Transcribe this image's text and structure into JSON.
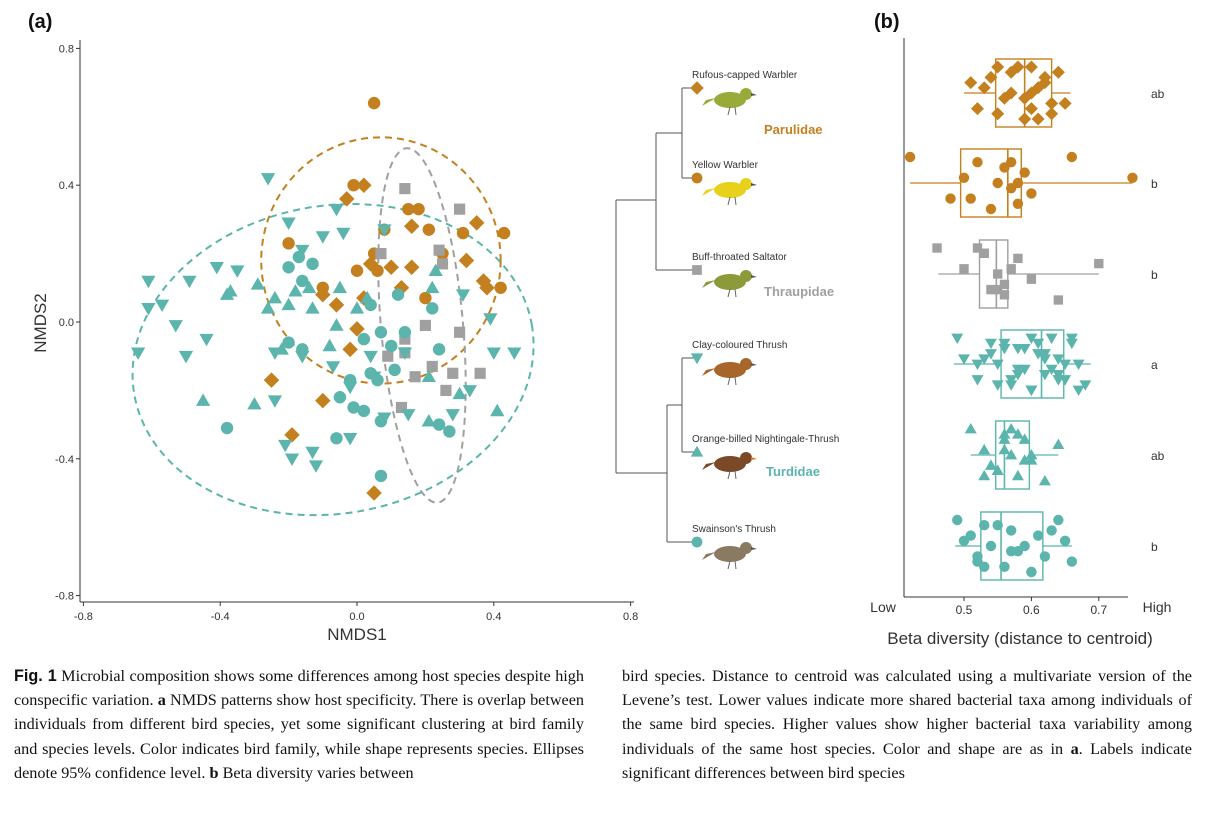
{
  "colors": {
    "parulidae": "#C4801E",
    "thraupidae": "#A0A0A0",
    "turdidae": "#5BB5AC",
    "axis": "#333333"
  },
  "panel_a": {
    "label": "(a)",
    "xlabel": "NMDS1",
    "ylabel": "NMDS2",
    "xticks": [
      "-0.8",
      "-0.4",
      "0.0",
      "0.4",
      "0.8"
    ],
    "yticks": [
      "0.8",
      "0.4",
      "0.0",
      "-0.4",
      "-0.8"
    ]
  },
  "tree": {
    "species": [
      {
        "name": "Rufous-capped Warbler",
        "shape": "diamond",
        "family": "parulidae",
        "bird_icon": "rufous-capped-warbler-icon"
      },
      {
        "name": "Yellow Warbler",
        "shape": "circle",
        "family": "parulidae",
        "bird_icon": "yellow-warbler-icon"
      },
      {
        "name": "Buff-throated Saltator",
        "shape": "square",
        "family": "thraupidae",
        "bird_icon": "buff-throated-saltator-icon"
      },
      {
        "name": "Clay-coloured Thrush",
        "shape": "triangle-down",
        "family": "turdidae",
        "bird_icon": "clay-coloured-thrush-icon"
      },
      {
        "name": "Orange-billed Nightingale-Thrush",
        "shape": "triangle-up",
        "family": "turdidae",
        "bird_icon": "orange-billed-nightingale-thrush-icon"
      },
      {
        "name": "Swainson's Thrush",
        "shape": "circle",
        "family": "turdidae",
        "bird_icon": "swainsons-thrush-icon"
      }
    ],
    "families": [
      "Parulidae",
      "Thraupidae",
      "Turdidae"
    ]
  },
  "panel_b": {
    "label": "(b)",
    "xlabel": "Beta diversity (distance to centroid)",
    "low": "Low",
    "high": "High",
    "xticks": [
      "0.5",
      "0.6",
      "0.7"
    ],
    "significance": [
      "ab",
      "b",
      "b",
      "a",
      "ab",
      "b"
    ]
  },
  "chart_data": [
    {
      "type": "scatter",
      "title": "",
      "xlabel": "NMDS1",
      "ylabel": "NMDS2",
      "xlim": [
        -0.8,
        0.8
      ],
      "ylim": [
        -0.8,
        0.8
      ],
      "grid": false,
      "ellipses": [
        {
          "family": "Parulidae",
          "center": [
            0.07,
            0.18
          ],
          "semi_axes": [
            0.35,
            0.36
          ],
          "style": "dashed"
        },
        {
          "family": "Thraupidae",
          "center": [
            0.19,
            -0.01
          ],
          "semi_axes": [
            0.12,
            0.52
          ],
          "rotation_deg": -5,
          "style": "dashed"
        },
        {
          "family": "Turdidae",
          "center": [
            -0.07,
            -0.11
          ],
          "semi_axes": [
            0.59,
            0.45
          ],
          "rotation_deg": -10,
          "style": "dashed"
        }
      ],
      "series": [
        {
          "name": "Rufous-capped Warbler",
          "shape": "diamond",
          "color": "#C4801E",
          "points": [
            [
              0.02,
              0.4
            ],
            [
              -0.03,
              0.36
            ],
            [
              0.04,
              0.17
            ],
            [
              0.16,
              0.16
            ],
            [
              0.32,
              0.18
            ],
            [
              0.37,
              0.12
            ],
            [
              0.38,
              0.1
            ],
            [
              -0.1,
              0.08
            ],
            [
              -0.06,
              0.05
            ],
            [
              0.02,
              0.07
            ],
            [
              -0.02,
              -0.08
            ],
            [
              -0.25,
              -0.17
            ],
            [
              -0.1,
              -0.23
            ],
            [
              -0.19,
              -0.33
            ],
            [
              0.05,
              -0.5
            ],
            [
              0.16,
              0.28
            ],
            [
              0.35,
              0.29
            ],
            [
              0.1,
              0.16
            ],
            [
              -0.0,
              -0.02
            ],
            [
              0.13,
              0.1
            ]
          ]
        },
        {
          "name": "Yellow Warbler",
          "shape": "circle",
          "color": "#C4801E",
          "points": [
            [
              0.05,
              0.64
            ],
            [
              -0.01,
              0.4
            ],
            [
              0.15,
              0.33
            ],
            [
              0.18,
              0.33
            ],
            [
              0.08,
              0.27
            ],
            [
              0.21,
              0.27
            ],
            [
              0.31,
              0.26
            ],
            [
              0.43,
              0.26
            ],
            [
              -0.2,
              0.23
            ],
            [
              0.25,
              0.2
            ],
            [
              0.05,
              0.2
            ],
            [
              -0.0,
              0.15
            ],
            [
              0.06,
              0.15
            ],
            [
              -0.1,
              0.1
            ],
            [
              0.2,
              0.07
            ],
            [
              0.42,
              0.1
            ]
          ]
        },
        {
          "name": "Buff-throated Saltator",
          "shape": "square",
          "color": "#A0A0A0",
          "points": [
            [
              0.14,
              0.39
            ],
            [
              0.3,
              0.33
            ],
            [
              0.24,
              0.21
            ],
            [
              0.25,
              0.17
            ],
            [
              0.07,
              0.2
            ],
            [
              0.2,
              -0.01
            ],
            [
              0.3,
              -0.03
            ],
            [
              0.14,
              -0.05
            ],
            [
              0.09,
              -0.1
            ],
            [
              0.14,
              -0.09
            ],
            [
              0.22,
              -0.13
            ],
            [
              0.28,
              -0.15
            ],
            [
              0.36,
              -0.15
            ],
            [
              0.17,
              -0.16
            ],
            [
              0.13,
              -0.25
            ],
            [
              0.26,
              -0.2
            ]
          ]
        },
        {
          "name": "Clay-coloured Thrush",
          "shape": "triangle-down",
          "color": "#5BB5AC",
          "points": [
            [
              -0.26,
              0.42
            ],
            [
              -0.06,
              0.33
            ],
            [
              -0.2,
              0.29
            ],
            [
              -0.1,
              0.25
            ],
            [
              -0.16,
              0.21
            ],
            [
              -0.04,
              0.26
            ],
            [
              0.08,
              0.27
            ],
            [
              -0.41,
              0.16
            ],
            [
              -0.35,
              0.15
            ],
            [
              -0.61,
              0.12
            ],
            [
              -0.49,
              0.12
            ],
            [
              -0.57,
              0.05
            ],
            [
              -0.61,
              0.04
            ],
            [
              -0.53,
              -0.01
            ],
            [
              -0.44,
              -0.05
            ],
            [
              -0.64,
              -0.09
            ],
            [
              -0.5,
              -0.1
            ],
            [
              -0.24,
              -0.09
            ],
            [
              -0.16,
              -0.1
            ],
            [
              0.04,
              -0.1
            ],
            [
              -0.07,
              -0.13
            ],
            [
              -0.02,
              -0.19
            ],
            [
              0.05,
              -0.16
            ],
            [
              -0.24,
              -0.23
            ],
            [
              0.08,
              -0.28
            ],
            [
              -0.21,
              -0.36
            ],
            [
              -0.02,
              -0.34
            ],
            [
              -0.13,
              -0.38
            ],
            [
              -0.19,
              -0.4
            ],
            [
              -0.12,
              -0.42
            ],
            [
              0.15,
              -0.27
            ],
            [
              0.33,
              -0.2
            ],
            [
              0.4,
              -0.09
            ],
            [
              0.31,
              0.08
            ],
            [
              0.39,
              0.01
            ],
            [
              0.46,
              -0.09
            ],
            [
              0.14,
              -0.09
            ],
            [
              0.28,
              -0.27
            ]
          ]
        },
        {
          "name": "Orange-billed Nightingale-Thrush",
          "shape": "triangle-up",
          "color": "#5BB5AC",
          "points": [
            [
              -0.37,
              0.09
            ],
            [
              -0.29,
              0.11
            ],
            [
              -0.14,
              0.1
            ],
            [
              -0.05,
              0.1
            ],
            [
              -0.24,
              0.07
            ],
            [
              -0.18,
              0.09
            ],
            [
              -0.38,
              0.08
            ],
            [
              -0.26,
              0.04
            ],
            [
              -0.2,
              0.05
            ],
            [
              -0.13,
              0.04
            ],
            [
              0.03,
              0.07
            ],
            [
              0.23,
              0.15
            ],
            [
              0.22,
              0.1
            ],
            [
              0.0,
              0.04
            ],
            [
              -0.06,
              -0.01
            ],
            [
              -0.08,
              -0.07
            ],
            [
              -0.22,
              -0.08
            ],
            [
              -0.3,
              -0.24
            ],
            [
              -0.45,
              -0.23
            ],
            [
              0.21,
              -0.16
            ],
            [
              0.3,
              -0.21
            ],
            [
              0.21,
              -0.29
            ],
            [
              0.41,
              -0.26
            ]
          ]
        },
        {
          "name": "Swainson's Thrush",
          "shape": "circle",
          "color": "#5BB5AC",
          "points": [
            [
              -0.17,
              0.19
            ],
            [
              -0.2,
              0.16
            ],
            [
              -0.13,
              0.17
            ],
            [
              -0.16,
              0.12
            ],
            [
              0.12,
              0.08
            ],
            [
              0.04,
              0.05
            ],
            [
              0.22,
              0.04
            ],
            [
              0.07,
              -0.03
            ],
            [
              -0.2,
              -0.06
            ],
            [
              -0.16,
              -0.08
            ],
            [
              0.02,
              -0.05
            ],
            [
              0.1,
              -0.07
            ],
            [
              0.14,
              -0.03
            ],
            [
              0.24,
              -0.08
            ],
            [
              -0.02,
              -0.17
            ],
            [
              0.06,
              -0.17
            ],
            [
              0.11,
              -0.14
            ],
            [
              0.04,
              -0.15
            ],
            [
              -0.06,
              -0.34
            ],
            [
              -0.38,
              -0.31
            ],
            [
              0.24,
              -0.3
            ],
            [
              0.27,
              -0.32
            ],
            [
              0.07,
              -0.45
            ],
            [
              0.07,
              -0.29
            ],
            [
              0.02,
              -0.26
            ],
            [
              -0.05,
              -0.22
            ],
            [
              -0.01,
              -0.25
            ]
          ]
        }
      ]
    },
    {
      "type": "box",
      "title": "",
      "xlabel": "Beta diversity (distance to centroid)",
      "ylabel": "",
      "xlim": [
        0.41,
        0.755
      ],
      "categories": [
        "Rufous-capped Warbler",
        "Yellow Warbler",
        "Buff-throated Saltator",
        "Clay-coloured Thrush",
        "Orange-billed Nightingale-Thrush",
        "Swainson's Thrush"
      ],
      "boxes": [
        {
          "whisker_low": 0.5,
          "q1": 0.547,
          "median": 0.59,
          "q3": 0.63,
          "whisker_high": 0.658
        },
        {
          "whisker_low": 0.42,
          "q1": 0.495,
          "median": 0.565,
          "q3": 0.585,
          "whisker_high": 0.75
        },
        {
          "whisker_low": 0.462,
          "q1": 0.523,
          "median": 0.548,
          "q3": 0.565,
          "whisker_high": 0.7
        },
        {
          "whisker_low": 0.485,
          "q1": 0.555,
          "median": 0.615,
          "q3": 0.648,
          "whisker_high": 0.688
        },
        {
          "whisker_low": 0.51,
          "q1": 0.547,
          "median": 0.56,
          "q3": 0.597,
          "whisker_high": 0.64
        },
        {
          "whisker_low": 0.487,
          "q1": 0.525,
          "median": 0.555,
          "q3": 0.617,
          "whisker_high": 0.66
        }
      ],
      "points": [
        [
          0.55,
          0.61,
          0.52,
          0.57,
          0.6,
          0.63,
          0.54,
          0.56,
          0.59,
          0.62,
          0.65,
          0.58,
          0.53,
          0.6,
          0.64,
          0.57,
          0.55,
          0.62,
          0.59,
          0.61,
          0.51,
          0.63,
          0.6
        ],
        [
          0.42,
          0.5,
          0.48,
          0.52,
          0.55,
          0.58,
          0.56,
          0.57,
          0.54,
          0.59,
          0.6,
          0.66,
          0.75,
          0.51,
          0.57,
          0.58
        ],
        [
          0.46,
          0.5,
          0.54,
          0.53,
          0.55,
          0.56,
          0.58,
          0.6,
          0.64,
          0.7,
          0.56,
          0.52,
          0.57,
          0.55,
          0.53
        ],
        [
          0.49,
          0.5,
          0.52,
          0.54,
          0.55,
          0.57,
          0.58,
          0.59,
          0.6,
          0.61,
          0.62,
          0.63,
          0.64,
          0.65,
          0.66,
          0.67,
          0.68,
          0.56,
          0.58,
          0.6,
          0.62,
          0.64,
          0.66,
          0.53,
          0.57,
          0.61,
          0.65,
          0.55,
          0.59,
          0.63,
          0.67,
          0.54,
          0.58,
          0.6,
          0.62,
          0.64,
          0.56,
          0.52
        ],
        [
          0.51,
          0.53,
          0.55,
          0.56,
          0.57,
          0.58,
          0.59,
          0.6,
          0.62,
          0.64,
          0.54,
          0.57,
          0.56,
          0.55,
          0.58,
          0.6,
          0.53,
          0.56,
          0.59
        ],
        [
          0.49,
          0.5,
          0.52,
          0.53,
          0.54,
          0.56,
          0.57,
          0.58,
          0.6,
          0.61,
          0.62,
          0.64,
          0.65,
          0.66,
          0.55,
          0.59,
          0.53,
          0.63,
          0.57,
          0.6,
          0.51,
          0.52
        ]
      ]
    }
  ],
  "caption": {
    "fig_label": "Fig. 1",
    "left_text": " Microbial composition shows some differences among host species despite high conspecific variation. ",
    "a_label": "a",
    "a_text": " NMDS patterns show host specificity. There is overlap between individuals from different bird species, yet some significant clustering at bird family and species levels. Color indicates bird family, while shape represents species. Ellipses denote 95% confidence level. ",
    "b_label": "b",
    "b_text_left": " Beta diversity varies between",
    "right_text": "bird species. Distance to centroid was calculated using a multivariate version of the Levene’s test. Lower values indicate more shared bacterial taxa among individuals of the same bird species. Higher values show higher bacterial taxa variability among individuals of the same host species. Color and shape are as in ",
    "a_ref": "a",
    "right_end": ". Labels indicate significant differences between bird species"
  }
}
